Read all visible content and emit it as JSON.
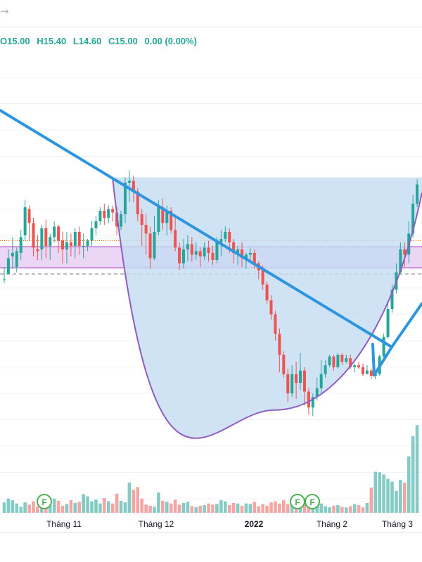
{
  "header": {
    "back_icon": "arrow-right-icon",
    "ohlc": [
      "O15.00",
      "H15.40",
      "L14.60",
      "C15.00",
      "0.00 (0.00%)"
    ]
  },
  "colors": {
    "up": "#26a69a",
    "down": "#ef5350",
    "up_volume": "#83cbc4",
    "down_volume": "#f3a6a4",
    "trendline": "#2e96e0",
    "cup_curve": "#8e5cc2",
    "cup_fill": "#c4dcf2",
    "purple_band": "#e7cff3",
    "dividend_badge": "#4caf50"
  },
  "chart_data": {
    "type": "candlestick",
    "x_ticks": [
      {
        "label": "Tháng 11",
        "bold": false
      },
      {
        "label": "Tháng 12",
        "bold": false
      },
      {
        "label": "2022",
        "bold": true
      },
      {
        "label": "Tháng 2",
        "bold": false
      },
      {
        "label": "Tháng 3",
        "bold": false
      }
    ],
    "events": [
      {
        "label": "F",
        "position": 0.105
      },
      {
        "label": "F",
        "position": 0.705
      },
      {
        "label": "F",
        "position": 0.74
      }
    ],
    "candles": [
      [
        -0.3,
        -0.3,
        -0.5,
        0.4
      ],
      [
        0.0,
        0.9,
        0.1,
        1.4
      ],
      [
        1.0,
        1.2,
        0.3,
        2.1
      ],
      [
        0.4,
        1.3,
        0.1,
        1.5
      ],
      [
        1.2,
        2.1,
        0.8,
        2.5
      ],
      [
        2.2,
        3.8,
        1.9,
        4.2
      ],
      [
        3.7,
        2.9,
        1.9,
        3.9
      ],
      [
        2.9,
        1.5,
        1.0,
        3.2
      ],
      [
        1.4,
        1.3,
        0.8,
        2.2
      ],
      [
        1.4,
        2.6,
        0.8,
        2.8
      ],
      [
        2.6,
        1.6,
        0.9,
        3.1
      ],
      [
        1.6,
        2.1,
        0.8,
        2.3
      ],
      [
        2.1,
        2.7,
        1.8,
        3.0
      ],
      [
        2.7,
        1.9,
        1.2,
        2.8
      ],
      [
        1.9,
        1.4,
        0.6,
        2.4
      ],
      [
        1.4,
        1.8,
        0.6,
        2.4
      ],
      [
        1.8,
        1.6,
        1.0,
        2.3
      ],
      [
        1.6,
        2.4,
        0.9,
        2.6
      ],
      [
        2.4,
        1.6,
        1.1,
        2.7
      ],
      [
        1.6,
        1.6,
        0.9,
        2.3
      ],
      [
        1.6,
        1.9,
        1.3,
        2.0
      ],
      [
        1.9,
        2.6,
        1.6,
        3.0
      ],
      [
        2.6,
        3.0,
        2.2,
        3.3
      ],
      [
        3.0,
        3.6,
        2.8,
        3.8
      ],
      [
        3.6,
        3.2,
        2.8,
        4.0
      ],
      [
        3.2,
        3.7,
        2.9,
        3.9
      ],
      [
        3.7,
        3.5,
        3.0,
        3.9
      ],
      [
        3.5,
        2.7,
        2.2,
        3.8
      ],
      [
        2.7,
        3.4,
        2.5,
        3.6
      ],
      [
        3.4,
        5.2,
        2.9,
        5.5
      ],
      [
        5.2,
        5.3,
        4.1,
        5.9
      ],
      [
        5.3,
        4.7,
        4.1,
        5.6
      ],
      [
        4.7,
        3.4,
        3.0,
        4.9
      ],
      [
        3.4,
        2.8,
        1.6,
        3.7
      ],
      [
        2.8,
        2.3,
        1.1,
        3.4
      ],
      [
        2.3,
        0.9,
        0.3,
        2.7
      ],
      [
        0.9,
        2.4,
        0.8,
        3.3
      ],
      [
        2.4,
        3.8,
        2.2,
        4.2
      ],
      [
        3.8,
        2.9,
        2.5,
        4.3
      ],
      [
        2.9,
        3.6,
        2.2,
        3.9
      ],
      [
        3.6,
        2.5,
        2.3,
        3.8
      ],
      [
        2.5,
        1.5,
        1.3,
        3.2
      ],
      [
        1.5,
        0.6,
        0.2,
        1.8
      ],
      [
        0.6,
        1.4,
        0.3,
        2.0
      ],
      [
        1.4,
        1.7,
        0.7,
        2.2
      ],
      [
        1.7,
        1.1,
        0.7,
        2.1
      ],
      [
        1.1,
        1.3,
        0.8,
        1.8
      ],
      [
        1.3,
        1.0,
        0.4,
        1.5
      ],
      [
        1.0,
        1.5,
        0.8,
        1.8
      ],
      [
        1.5,
        1.2,
        0.7,
        1.9
      ],
      [
        1.2,
        0.8,
        0.5,
        1.6
      ],
      [
        0.8,
        1.8,
        0.6,
        2.1
      ],
      [
        1.8,
        2.0,
        1.0,
        2.5
      ],
      [
        2.0,
        2.4,
        1.8,
        2.7
      ],
      [
        2.4,
        1.8,
        1.2,
        2.6
      ],
      [
        1.8,
        1.2,
        0.6,
        2.0
      ],
      [
        1.2,
        1.4,
        0.5,
        1.6
      ],
      [
        1.4,
        0.9,
        0.4,
        1.8
      ],
      [
        0.9,
        1.1,
        0.3,
        1.2
      ],
      [
        1.1,
        1.2,
        0.6,
        1.5
      ],
      [
        1.2,
        0.6,
        0.3,
        1.4
      ],
      [
        0.6,
        0.2,
        -0.3,
        0.7
      ],
      [
        0.2,
        -0.6,
        -0.9,
        0.5
      ],
      [
        -0.6,
        -1.5,
        -1.7,
        -0.4
      ],
      [
        -1.5,
        -2.3,
        -2.6,
        -1.2
      ],
      [
        -2.3,
        -3.4,
        -3.8,
        -2.1
      ],
      [
        -3.4,
        -4.6,
        -5.6,
        -3.1
      ],
      [
        -4.6,
        -5.7,
        -5.9,
        -4.4
      ],
      [
        -5.7,
        -6.8,
        -7.3,
        -5.4
      ],
      [
        -6.8,
        -5.7,
        -7.0,
        -5.2
      ],
      [
        -5.7,
        -6.2,
        -7.1,
        -5.0
      ],
      [
        -6.2,
        -5.5,
        -6.6,
        -4.5
      ],
      [
        -5.5,
        -6.7,
        -7.5,
        -5.3
      ],
      [
        -6.7,
        -7.6,
        -8.0,
        -6.5
      ],
      [
        -7.6,
        -7.0,
        -8.1,
        -6.8
      ],
      [
        -7.0,
        -6.5,
        -7.2,
        -5.9
      ],
      [
        -6.5,
        -5.7,
        -6.8,
        -4.9
      ],
      [
        -5.7,
        -5.2,
        -5.9,
        -4.9
      ],
      [
        -5.2,
        -4.7,
        -5.3,
        -4.6
      ],
      [
        -4.7,
        -5.3,
        -5.5,
        -4.6
      ],
      [
        -5.3,
        -4.6,
        -5.4,
        -4.5
      ],
      [
        -4.6,
        -5.0,
        -5.2,
        -4.5
      ],
      [
        -5.0,
        -4.8,
        -5.1,
        -4.6
      ],
      [
        -4.8,
        -5.3,
        -5.4,
        -4.6
      ],
      [
        -5.3,
        -5.2,
        -5.6,
        -5.1
      ],
      [
        -5.2,
        -5.3,
        -5.4,
        -5.0
      ],
      [
        -5.3,
        -5.7,
        -5.8,
        -5.1
      ],
      [
        -5.7,
        -5.5,
        -5.7,
        -5.2
      ],
      [
        -5.5,
        -5.8,
        -6.0,
        -5.4
      ],
      [
        -5.8,
        -5.7,
        -6.0,
        -5.6
      ],
      [
        -5.7,
        -4.7,
        -5.8,
        -4.6
      ],
      [
        -4.7,
        -3.6,
        -4.8,
        -3.4
      ],
      [
        -3.6,
        -2.0,
        -3.7,
        -1.7
      ],
      [
        -2.0,
        -0.9,
        -2.2,
        -0.6
      ],
      [
        -0.9,
        0.1,
        -1.1,
        0.6
      ],
      [
        0.1,
        1.4,
        0.0,
        1.8
      ],
      [
        1.4,
        1.1,
        0.4,
        1.8
      ],
      [
        1.1,
        2.3,
        0.6,
        3.0
      ],
      [
        2.3,
        4.0,
        2.1,
        4.5
      ],
      [
        4.0,
        5.1,
        3.8,
        5.4
      ]
    ],
    "volume": [
      19,
      26,
      23,
      17,
      11,
      19,
      15,
      21,
      12,
      11,
      16,
      14,
      26,
      22,
      13,
      16,
      23,
      18,
      20,
      34,
      30,
      21,
      24,
      17,
      27,
      21,
      17,
      35,
      22,
      19,
      55,
      42,
      47,
      26,
      15,
      13,
      11,
      37,
      22,
      20,
      17,
      24,
      15,
      18,
      20,
      12,
      10,
      13,
      14,
      17,
      15,
      16,
      23,
      21,
      14,
      18,
      17,
      13,
      17,
      16,
      20,
      12,
      16,
      13,
      19,
      21,
      17,
      23,
      16,
      19,
      20,
      22,
      15,
      12,
      14,
      15,
      17,
      12,
      10,
      13,
      14,
      11,
      10,
      12,
      16,
      14,
      10,
      18,
      46,
      75,
      74,
      70,
      62,
      57,
      40,
      60,
      55,
      103,
      140,
      160
    ],
    "y_levels": {
      "purple_band": [
        0.35,
        1.55
      ],
      "dashed_line": 0.0,
      "dotted_line": 1.9,
      "cup_rim": 5.5,
      "cup_bottom": -7.75
    }
  }
}
